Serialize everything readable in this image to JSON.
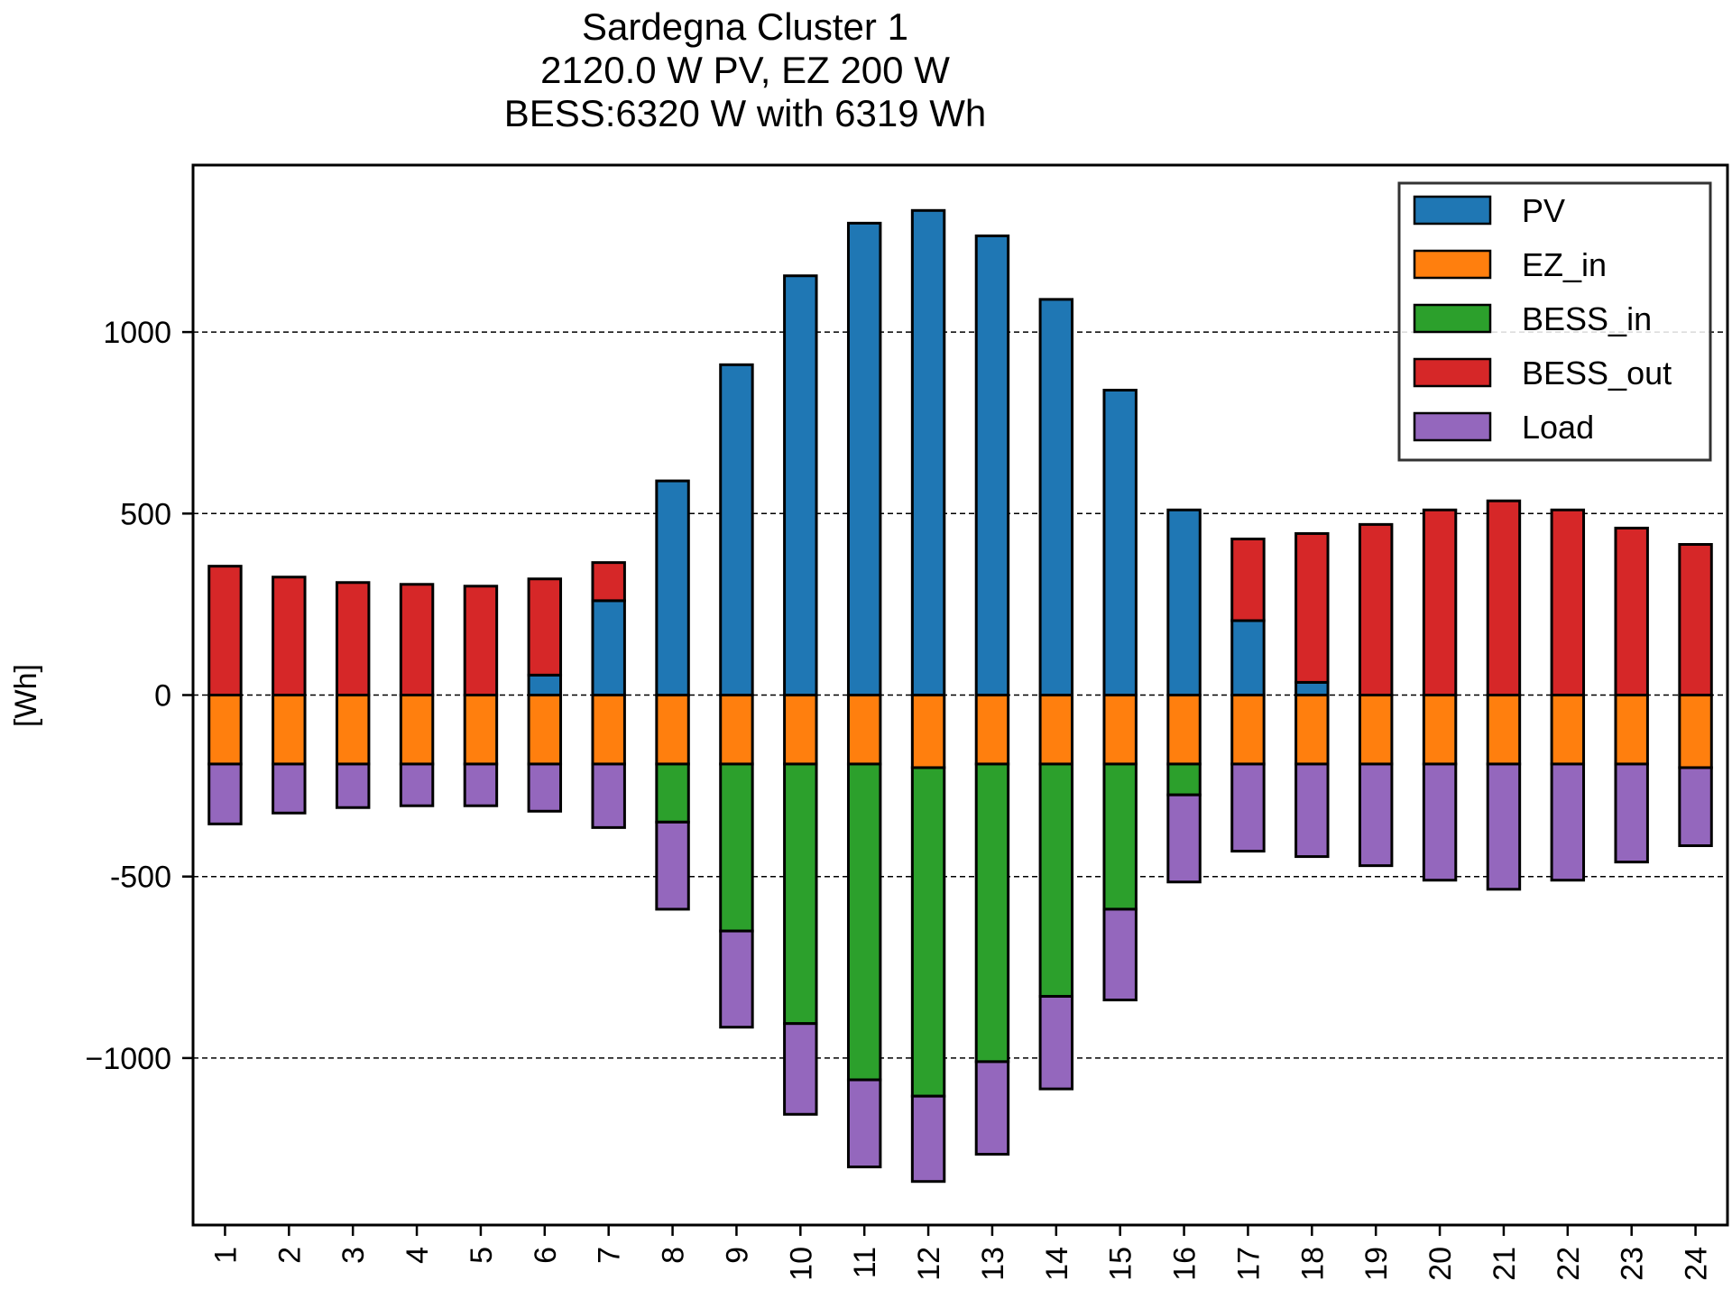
{
  "chart_data": {
    "type": "bar",
    "stacked": true,
    "title_lines": [
      "Sardegna Cluster 1",
      "2120.0 W PV, EZ 200 W",
      "BESS:6320 W with 6319 Wh"
    ],
    "xlabel": "",
    "ylabel": "[Wh]",
    "ylim": [
      -1460,
      1460
    ],
    "yticks": [
      1000,
      500,
      0,
      -500,
      -1000
    ],
    "ytick_labels": [
      "1000",
      "500",
      "0",
      "-500",
      "−1000"
    ],
    "grid": "y-dashed",
    "legend_position": "top-right",
    "categories": [
      "1",
      "2",
      "3",
      "4",
      "5",
      "6",
      "7",
      "8",
      "9",
      "10",
      "11",
      "12",
      "13",
      "14",
      "15",
      "16",
      "17",
      "18",
      "19",
      "20",
      "21",
      "22",
      "23",
      "24"
    ],
    "series": [
      {
        "name": "PV",
        "color": "#1f77b4",
        "values": [
          0,
          0,
          0,
          0,
          0,
          55,
          260,
          590,
          910,
          1155,
          1300,
          1335,
          1265,
          1090,
          840,
          510,
          205,
          35,
          0,
          0,
          0,
          0,
          0,
          0
        ]
      },
      {
        "name": "EZ_in",
        "color": "#ff7f0e",
        "values": [
          -190,
          -190,
          -190,
          -190,
          -190,
          -190,
          -190,
          -190,
          -190,
          -190,
          -190,
          -200,
          -190,
          -190,
          -190,
          -190,
          -190,
          -190,
          -190,
          -190,
          -190,
          -190,
          -190,
          -200
        ]
      },
      {
        "name": "BESS_in",
        "color": "#2ca02c",
        "values": [
          0,
          0,
          0,
          0,
          0,
          0,
          0,
          -160,
          -460,
          -715,
          -870,
          -905,
          -820,
          -640,
          -400,
          -85,
          0,
          0,
          0,
          0,
          0,
          0,
          0,
          0
        ]
      },
      {
        "name": "BESS_out",
        "color": "#d62728",
        "values": [
          355,
          325,
          310,
          305,
          300,
          265,
          105,
          0,
          0,
          0,
          0,
          0,
          0,
          0,
          0,
          0,
          225,
          410,
          470,
          510,
          535,
          510,
          460,
          415
        ]
      },
      {
        "name": "Load",
        "color": "#9467bd",
        "values": [
          -165,
          -135,
          -120,
          -115,
          -115,
          -130,
          -175,
          -240,
          -265,
          -250,
          -240,
          -235,
          -255,
          -255,
          -250,
          -240,
          -240,
          -255,
          -280,
          -320,
          -345,
          -320,
          -270,
          -215
        ]
      }
    ]
  }
}
